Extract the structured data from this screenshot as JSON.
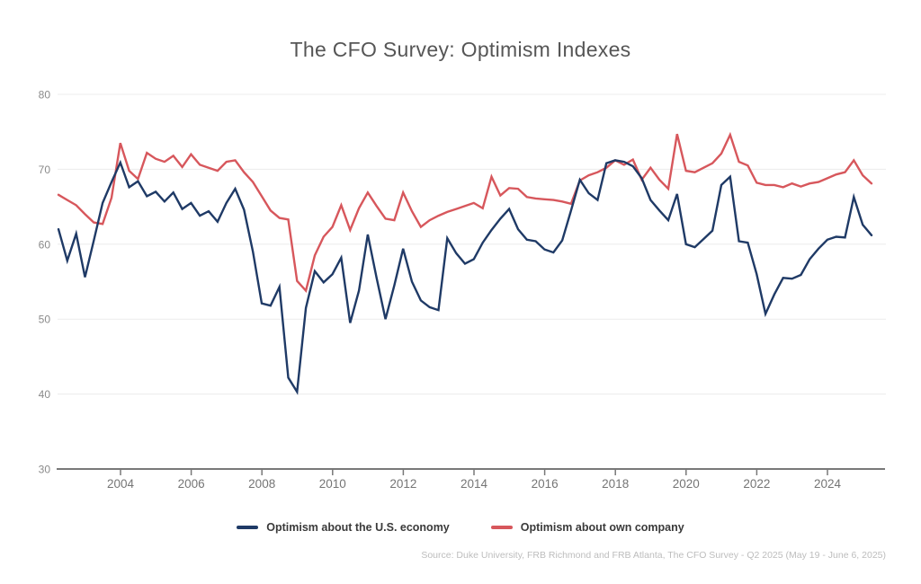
{
  "chart": {
    "title": "The CFO Survey: Optimism Indexes"
  },
  "legend": {
    "items": [
      {
        "label": "Optimism about the U.S. economy",
        "color": "#1f3a66"
      },
      {
        "label": "Optimism about own company",
        "color": "#d7575c"
      }
    ]
  },
  "source": "Source: Duke University, FRB Richmond and FRB Atlanta, The CFO Survey - Q2 2025 (May 19 - June 6, 2025)",
  "chart_data": {
    "type": "line",
    "title": "The CFO Survey: Optimism Indexes",
    "xlabel": "",
    "ylabel": "",
    "frequency": "quarterly",
    "x_start": "2002 Q2",
    "x_end": "2025 Q2",
    "x_tick_years": [
      2004,
      2006,
      2008,
      2010,
      2012,
      2014,
      2016,
      2018,
      2020,
      2022,
      2024
    ],
    "y_ticks": [
      80,
      70,
      60,
      50,
      40,
      30
    ],
    "ylim": [
      30,
      80
    ],
    "grid": "horizontal",
    "legend_position": "bottom",
    "series": [
      {
        "id": "us-economy",
        "name": "Optimism about the U.S. economy",
        "color": "#1f3a66",
        "values": [
          62.0,
          57.8,
          61.4,
          55.6,
          60.5,
          65.5,
          68.3,
          70.9,
          67.6,
          68.4,
          66.4,
          67.0,
          65.7,
          66.9,
          64.7,
          65.5,
          63.8,
          64.4,
          63.0,
          65.5,
          67.4,
          64.6,
          59.0,
          52.1,
          51.8,
          54.3,
          42.2,
          40.3,
          51.5,
          56.4,
          54.9,
          56.0,
          58.2,
          49.5,
          53.8,
          61.3,
          55.5,
          50.0,
          54.5,
          59.4,
          55.0,
          52.5,
          51.6,
          51.2,
          60.8,
          58.8,
          57.4,
          58.0,
          60.2,
          61.9,
          63.4,
          64.7,
          62.0,
          60.6,
          60.4,
          59.3,
          58.9,
          60.5,
          64.5,
          68.6,
          66.8,
          65.9,
          70.8,
          71.2,
          71.0,
          70.4,
          68.8,
          65.9,
          64.5,
          63.2,
          66.7,
          60.0,
          59.6,
          60.7,
          61.8,
          67.9,
          69.0,
          60.4,
          60.2,
          56.0,
          50.7,
          53.3,
          55.5,
          55.4,
          55.9,
          58.0,
          59.4,
          60.6,
          61.0,
          60.9,
          66.3,
          62.6,
          61.2
        ]
      },
      {
        "id": "own-company",
        "name": "Optimism about own company",
        "color": "#d7575c",
        "values": [
          66.6,
          65.9,
          65.2,
          64.0,
          62.9,
          62.7,
          66.2,
          73.5,
          69.8,
          68.7,
          72.2,
          71.4,
          71.0,
          71.8,
          70.3,
          72.0,
          70.6,
          70.2,
          69.8,
          71.0,
          71.2,
          69.6,
          68.3,
          66.4,
          64.5,
          63.5,
          63.3,
          55.1,
          53.8,
          58.5,
          61.0,
          62.3,
          65.2,
          61.9,
          64.8,
          66.9,
          65.1,
          63.4,
          63.2,
          66.9,
          64.4,
          62.3,
          63.2,
          63.8,
          64.3,
          64.7,
          65.1,
          65.5,
          64.8,
          69.0,
          66.5,
          67.5,
          67.4,
          66.3,
          66.1,
          66.0,
          65.9,
          65.7,
          65.4,
          68.5,
          69.2,
          69.6,
          70.2,
          71.2,
          70.6,
          71.3,
          68.6,
          70.2,
          68.6,
          67.4,
          74.7,
          69.8,
          69.6,
          70.2,
          70.8,
          72.1,
          74.6,
          71.0,
          70.5,
          68.2,
          67.9,
          67.9,
          67.6,
          68.1,
          67.7,
          68.1,
          68.3,
          68.8,
          69.3,
          69.6,
          71.2,
          69.2,
          68.1
        ]
      }
    ]
  }
}
